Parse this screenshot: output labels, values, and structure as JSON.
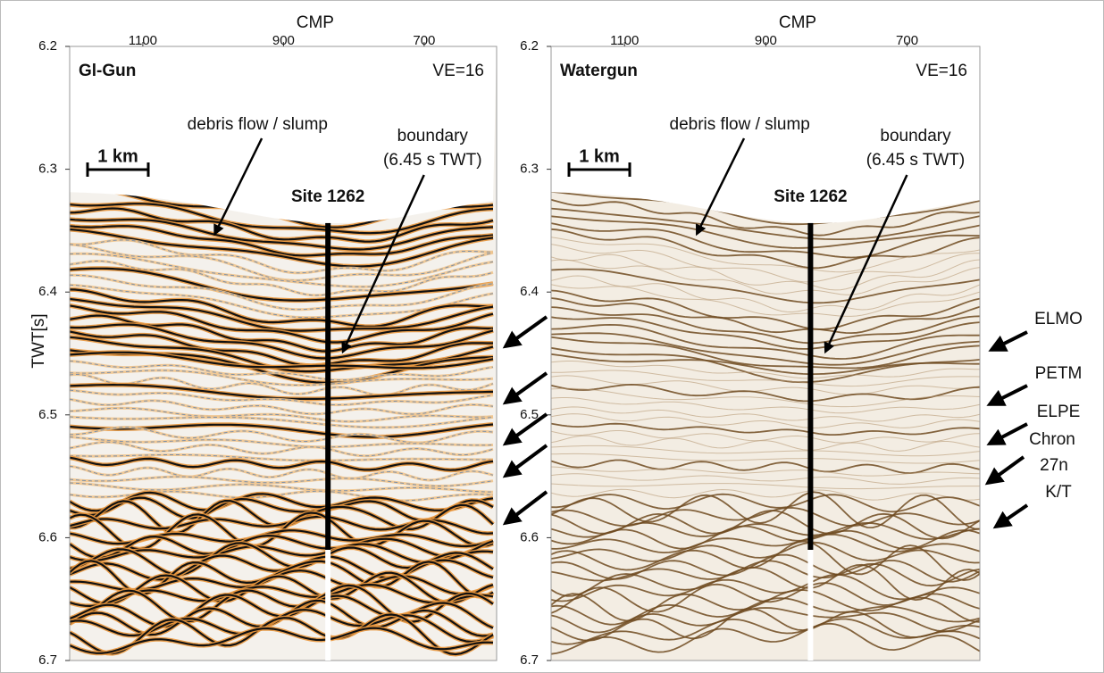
{
  "panels": [
    {
      "title": "Gl-Gun",
      "ve": "VE=16",
      "x_label": "CMP",
      "xlim": [
        1204,
        597
      ],
      "xticks": [
        1100,
        900,
        700
      ],
      "ylim": [
        6.2,
        6.7
      ],
      "yticks": [
        6.2,
        6.3,
        6.4,
        6.5,
        6.6,
        6.7
      ],
      "y_label": "TWT[s]",
      "scale_bar": "1 km",
      "site": "Site 1262",
      "annotations": [
        "debris flow / slump",
        "boundary",
        "(6.45 s TWT)"
      ]
    },
    {
      "title": "Watergun",
      "ve": "VE=16",
      "x_label": "CMP",
      "xlim": [
        1204,
        597
      ],
      "xticks": [
        1100,
        900,
        700
      ],
      "ylim": [
        6.2,
        6.7
      ],
      "yticks": [
        6.2,
        6.3,
        6.4,
        6.5,
        6.6,
        6.7
      ],
      "scale_bar": "1 km",
      "site": "Site 1262",
      "annotations": [
        "debris flow / slump",
        "boundary",
        "(6.45 s TWT)"
      ]
    }
  ],
  "horizons": [
    "ELMO",
    "PETM",
    "ELPE",
    "Chron",
    "27n",
    "K/T"
  ]
}
